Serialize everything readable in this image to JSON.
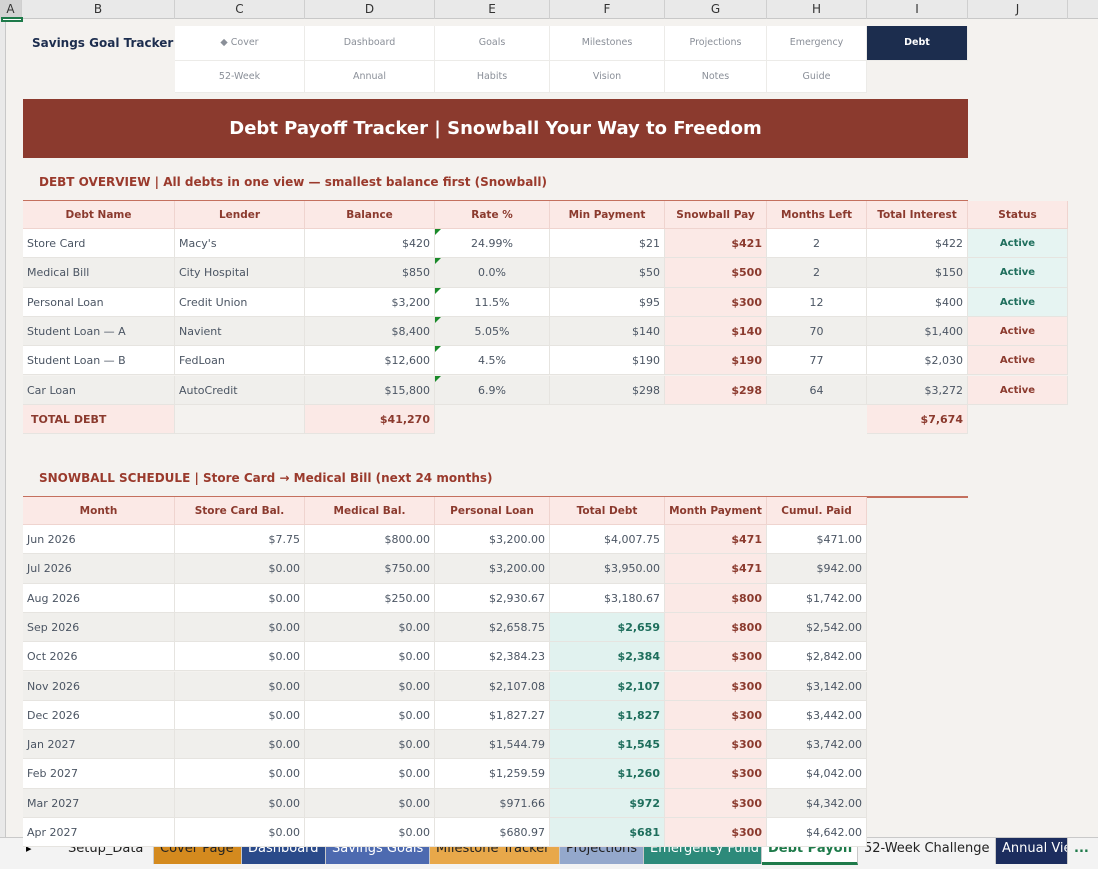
{
  "columns": [
    "A",
    "B",
    "C",
    "D",
    "E",
    "F",
    "G",
    "H",
    "I",
    "J"
  ],
  "nav": {
    "title": "Savings Goal Tracker",
    "row1": [
      "◆ Cover",
      "Dashboard",
      "Goals",
      "Milestones",
      "Projections",
      "Emergency",
      "Debt"
    ],
    "row2": [
      "52-Week",
      "Annual",
      "Habits",
      "Vision",
      "Notes",
      "Guide"
    ]
  },
  "banner": "Debt Payoff Tracker  |  Snowball Your Way to Freedom",
  "overview": {
    "heading": "DEBT OVERVIEW  |  All debts in one view — smallest balance first (Snowball)",
    "headers": [
      "Debt Name",
      "Lender",
      "Balance",
      "Rate %",
      "Min Payment",
      "Snowball Pay",
      "Months Left",
      "Total Interest",
      "Status"
    ],
    "rows": [
      [
        "Store Card",
        "Macy's",
        "$420",
        "24.99%",
        "$21",
        "$421",
        "2",
        "$422",
        "Active"
      ],
      [
        "Medical Bill",
        "City Hospital",
        "$850",
        "0.0%",
        "$50",
        "$500",
        "2",
        "$150",
        "Active"
      ],
      [
        "Personal Loan",
        "Credit Union",
        "$3,200",
        "11.5%",
        "$95",
        "$300",
        "12",
        "$400",
        "Active"
      ],
      [
        "Student Loan — A",
        "Navient",
        "$8,400",
        "5.05%",
        "$140",
        "$140",
        "70",
        "$1,400",
        "Active"
      ],
      [
        "Student Loan — B",
        "FedLoan",
        "$12,600",
        "4.5%",
        "$190",
        "$190",
        "77",
        "$2,030",
        "Active"
      ],
      [
        "Car Loan",
        "AutoCredit",
        "$15,800",
        "6.9%",
        "$298",
        "$298",
        "64",
        "$3,272",
        "Active"
      ]
    ],
    "total_label": "TOTAL DEBT",
    "total_balance": "$41,270",
    "total_interest": "$7,674"
  },
  "schedule": {
    "heading": "SNOWBALL SCHEDULE  |  Store Card → Medical Bill (next 24 months)",
    "headers": [
      "Month",
      "Store Card Bal.",
      "Medical Bal.",
      "Personal Loan",
      "Total Debt",
      "Month Payment",
      "Cumul. Paid"
    ],
    "rows": [
      [
        "Jun 2026",
        "$7.75",
        "$800.00",
        "$3,200.00",
        "$4,007.75",
        "$471",
        "$471.00"
      ],
      [
        "Jul 2026",
        "$0.00",
        "$750.00",
        "$3,200.00",
        "$3,950.00",
        "$471",
        "$942.00"
      ],
      [
        "Aug 2026",
        "$0.00",
        "$250.00",
        "$2,930.67",
        "$3,180.67",
        "$800",
        "$1,742.00"
      ],
      [
        "Sep 2026",
        "$0.00",
        "$0.00",
        "$2,658.75",
        "$2,659",
        "$800",
        "$2,542.00"
      ],
      [
        "Oct 2026",
        "$0.00",
        "$0.00",
        "$2,384.23",
        "$2,384",
        "$300",
        "$2,842.00"
      ],
      [
        "Nov 2026",
        "$0.00",
        "$0.00",
        "$2,107.08",
        "$2,107",
        "$300",
        "$3,142.00"
      ],
      [
        "Dec 2026",
        "$0.00",
        "$0.00",
        "$1,827.27",
        "$1,827",
        "$300",
        "$3,442.00"
      ],
      [
        "Jan 2027",
        "$0.00",
        "$0.00",
        "$1,544.79",
        "$1,545",
        "$300",
        "$3,742.00"
      ],
      [
        "Feb 2027",
        "$0.00",
        "$0.00",
        "$1,259.59",
        "$1,260",
        "$300",
        "$4,042.00"
      ],
      [
        "Mar 2027",
        "$0.00",
        "$0.00",
        "$971.66",
        "$972",
        "$300",
        "$4,342.00"
      ],
      [
        "Apr 2027",
        "$0.00",
        "$0.00",
        "$680.97",
        "$681",
        "$300",
        "$4,642.00"
      ]
    ]
  },
  "tabs": {
    "arrow": "▸",
    "items": [
      {
        "label": "Setup_Data",
        "color": "#f3f3f3",
        "text": "#222"
      },
      {
        "label": "Cover Page",
        "color": "#d48a1e",
        "text": "#222"
      },
      {
        "label": "Dashboard",
        "color": "#2a4a8a",
        "text": "#fff"
      },
      {
        "label": "Savings Goals",
        "color": "#4d6ab0",
        "text": "#fff"
      },
      {
        "label": "Milestone Tracker",
        "color": "#e8a84a",
        "text": "#222"
      },
      {
        "label": "Projections",
        "color": "#94a8cc",
        "text": "#222"
      },
      {
        "label": "Emergency Fund",
        "color": "#2d8a7a",
        "text": "#fff"
      },
      {
        "label": "Debt Payoff",
        "color": "#ffffff",
        "text": "#1e7a4a",
        "active": true
      },
      {
        "label": "52-Week Challenge",
        "color": "#f3f3f3",
        "text": "#222"
      },
      {
        "label": "Annual Vie",
        "color": "#1c2d5e",
        "text": "#fff"
      }
    ],
    "more": "..."
  }
}
